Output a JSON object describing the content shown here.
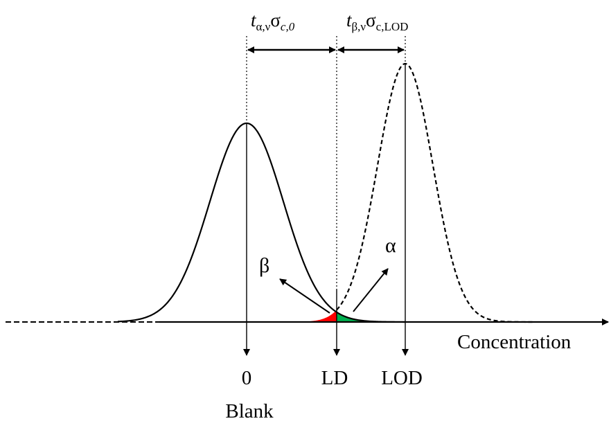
{
  "diagram": {
    "axis": {
      "label": "Concentration"
    },
    "ticks": {
      "zero": "0",
      "ld": "LD",
      "lod": "LOD"
    },
    "blank_label": "Blank",
    "top_labels": {
      "left": {
        "t": "t",
        "t_sub": "α,ν",
        "sigma": "σ",
        "sigma_sub": "c,0"
      },
      "right": {
        "t": "t",
        "t_sub": "β,ν",
        "sigma": "σ",
        "sigma_sub": "c,LOD"
      }
    },
    "greek": {
      "beta": "β",
      "alpha": "α"
    },
    "colors": {
      "beta_area": "#ff0000",
      "alpha_area": "#00b050",
      "line": "#000000"
    }
  }
}
